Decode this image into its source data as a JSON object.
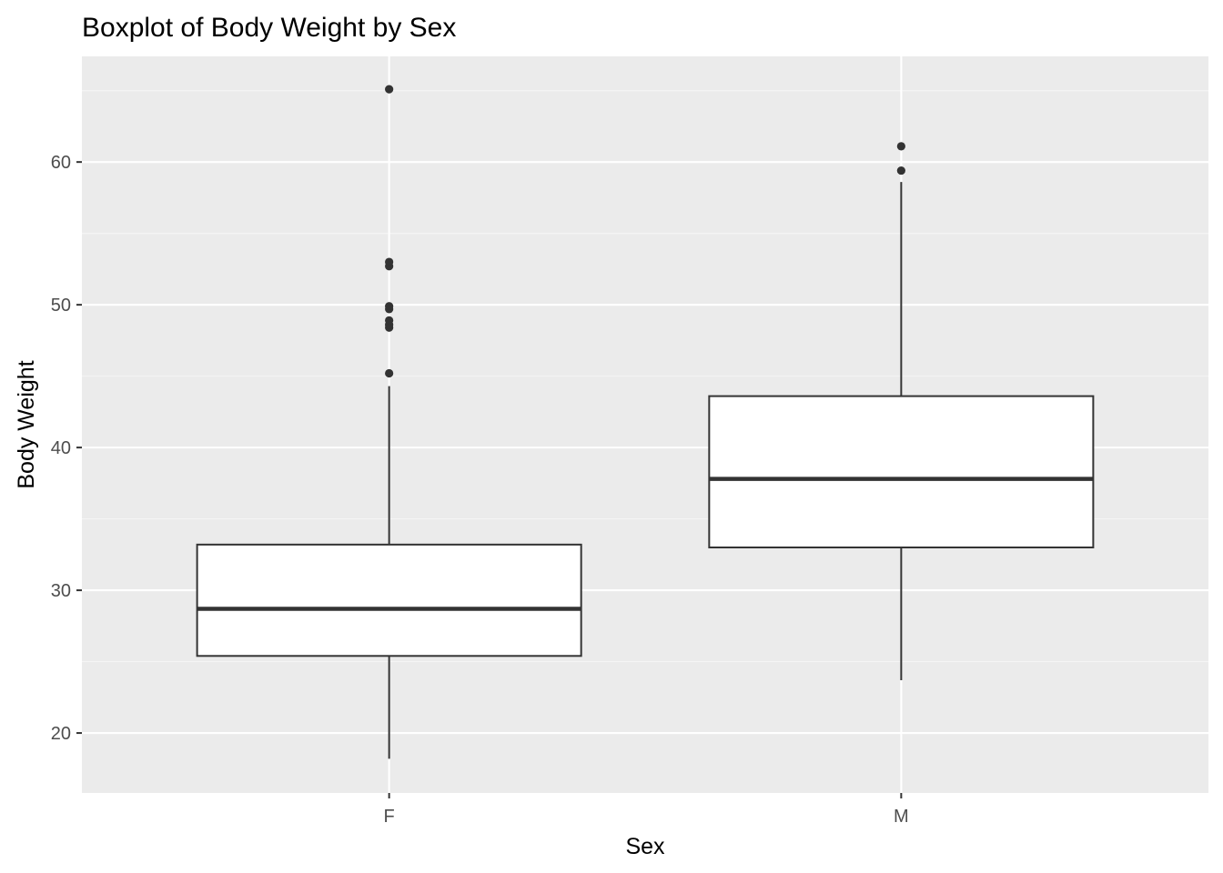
{
  "chart_data": {
    "type": "boxplot",
    "title": "Boxplot of Body Weight by Sex",
    "xlabel": "Sex",
    "ylabel": "Body Weight",
    "categories": [
      "F",
      "M"
    ],
    "ylim": [
      15.8,
      67.4
    ],
    "yticks": [
      20,
      30,
      40,
      50,
      60
    ],
    "grid": true,
    "legend": "none",
    "boxes": [
      {
        "category": "F",
        "whisker_low": 18.2,
        "q1": 25.4,
        "median": 28.7,
        "q3": 33.2,
        "whisker_high": 44.3,
        "outliers": [
          45.2,
          48.4,
          48.6,
          48.9,
          49.7,
          49.9,
          52.7,
          53.0,
          65.1
        ]
      },
      {
        "category": "M",
        "whisker_low": 23.7,
        "q1": 33.0,
        "median": 37.8,
        "q3": 43.6,
        "whisker_high": 58.6,
        "outliers": [
          59.4,
          61.1
        ]
      }
    ],
    "colors": {
      "panel_background": "#ebebeb",
      "grid_major": "#ffffff",
      "grid_minor": "#f5f5f5",
      "box_fill": "#ffffff",
      "box_line": "#333333",
      "outlier": "#333333",
      "tick_text": "#4d4d4d",
      "tick_mark": "#333333"
    }
  }
}
